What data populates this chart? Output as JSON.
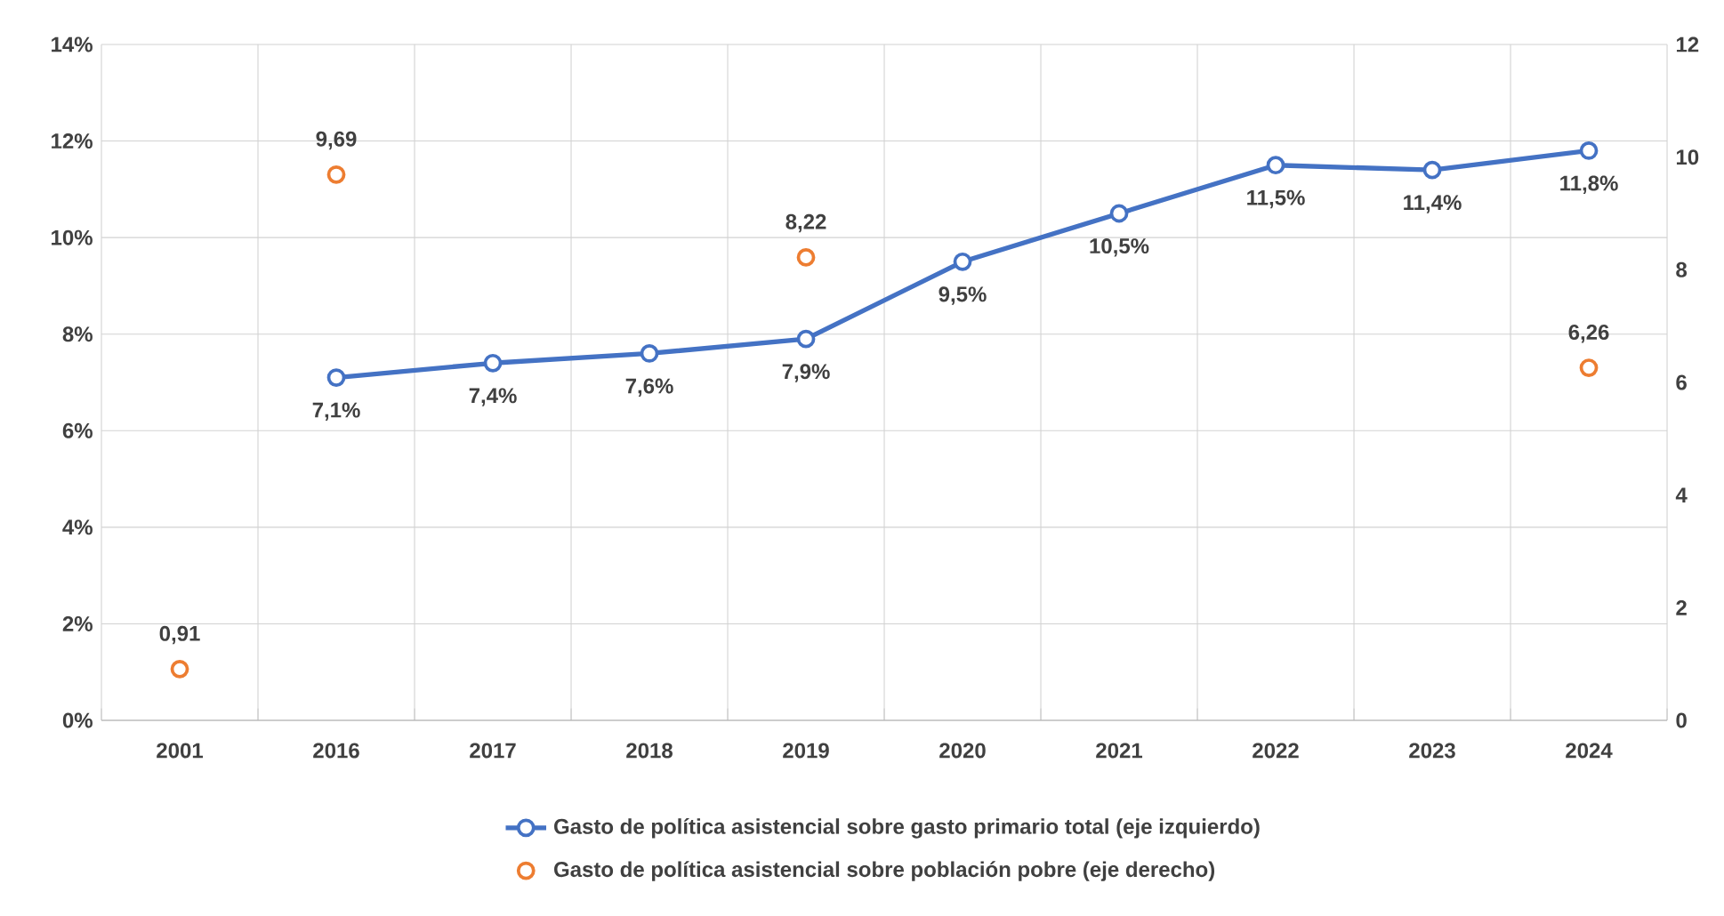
{
  "chart_data": {
    "type": "line",
    "categories": [
      "2001",
      "2016",
      "2017",
      "2018",
      "2019",
      "2020",
      "2021",
      "2022",
      "2023",
      "2024"
    ],
    "series": [
      {
        "name": "Gasto de política asistencial sobre gasto primario total (eje izquierdo)",
        "color": "#4472c4",
        "marker": "circle",
        "values": [
          null,
          7.1,
          7.4,
          7.6,
          7.9,
          9.5,
          10.5,
          11.5,
          11.4,
          11.8
        ],
        "value_labels": [
          null,
          "7,1%",
          "7,4%",
          "7,6%",
          "7,9%",
          "9,5%",
          "10,5%",
          "11,5%",
          "11,4%",
          "11,8%"
        ]
      },
      {
        "name": "Gasto de política asistencial sobre población pobre (eje derecho)",
        "type": "scatter",
        "axis": "y2",
        "color": "#ed7d31",
        "marker": "circle",
        "values": [
          0.91,
          9.69,
          null,
          null,
          8.22,
          null,
          null,
          null,
          null,
          6.26
        ],
        "value_labels": [
          "0,91",
          "9,69",
          null,
          null,
          "8,22",
          null,
          null,
          null,
          null,
          "6,26"
        ]
      }
    ],
    "ylim": [
      0,
      14
    ],
    "yticks": [
      {
        "value": 0,
        "label": "0%"
      },
      {
        "value": 2,
        "label": "2%"
      },
      {
        "value": 4,
        "label": "4%"
      },
      {
        "value": 6,
        "label": "6%"
      },
      {
        "value": 8,
        "label": "8%"
      },
      {
        "value": 10,
        "label": "10%"
      },
      {
        "value": 12,
        "label": "12%"
      },
      {
        "value": 14,
        "label": "14%"
      }
    ],
    "y2lim": [
      0,
      12
    ],
    "y2ticks": [
      0,
      2,
      4,
      6,
      8,
      10,
      12
    ],
    "grid": true,
    "legend": "bottom"
  }
}
